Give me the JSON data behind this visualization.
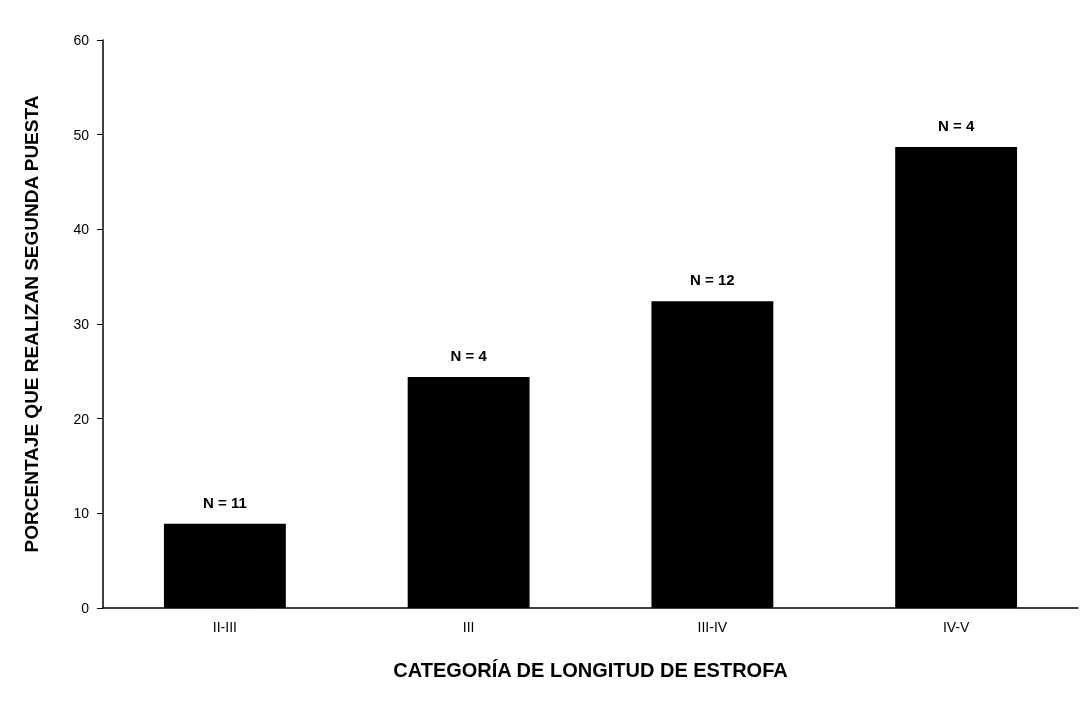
{
  "chart_data": {
    "type": "bar",
    "xlabel": "CATEGORÍA DE LONGITUD DE ESTROFA",
    "ylabel": "PORCENTAJE QUE REALIZAN SEGUNDA PUESTA",
    "categories": [
      "II-III",
      "III",
      "III-IV",
      "IV-V"
    ],
    "values": [
      8.9,
      24.4,
      32.4,
      48.7
    ],
    "annotations": [
      {
        "text": "N = 11",
        "x": "II-III",
        "y": 8.9
      },
      {
        "text": "N = 4",
        "x": "III",
        "y": 24.4
      },
      {
        "text": "N = 12",
        "x": "III-IV",
        "y": 32.4
      },
      {
        "text": "N = 4",
        "x": "IV-V",
        "y": 48.7
      }
    ],
    "color": "#000000",
    "ylim": [
      0,
      60
    ],
    "yticks": [
      0,
      10,
      20,
      30,
      40,
      50,
      60
    ],
    "grid": false
  }
}
